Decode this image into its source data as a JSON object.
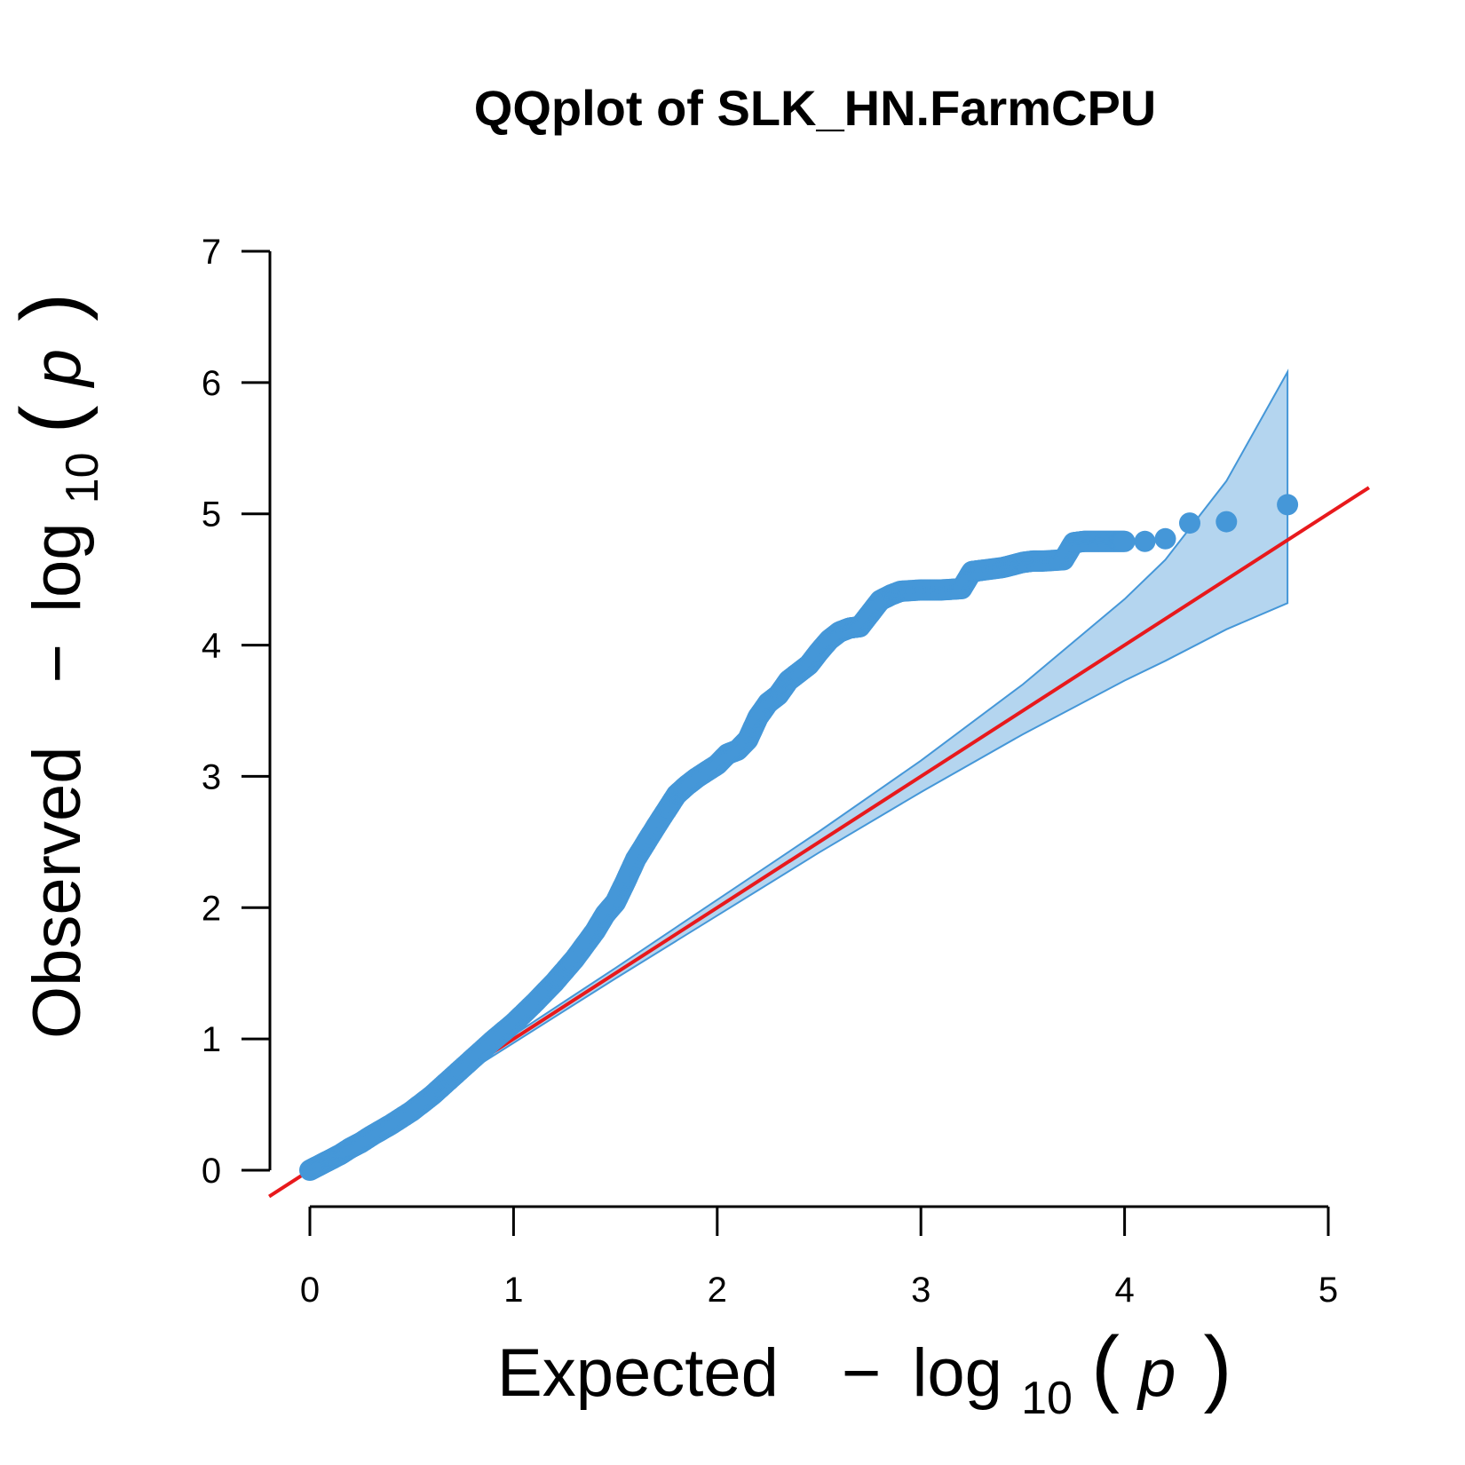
{
  "chart_data": {
    "type": "scatter",
    "title": "QQplot of SLK_HN.FarmCPU",
    "xlabel": {
      "text": "Expected",
      "minus": "−",
      "log": "log",
      "base": "10",
      "open": "(",
      "var": "p",
      "close": ")"
    },
    "ylabel": {
      "text": "Observed",
      "minus": "−",
      "log": "log",
      "base": "10",
      "open": "(",
      "var": "p",
      "close": ")"
    },
    "xlim": [
      0,
      5
    ],
    "ylim": [
      0,
      7
    ],
    "x_ticks": [
      0,
      1,
      2,
      3,
      4,
      5
    ],
    "y_ticks": [
      0,
      1,
      2,
      3,
      4,
      5,
      6,
      7
    ],
    "colors": {
      "points": "#4597d8",
      "reference_line": "#e8191c",
      "band_fill": "#b4d5ef",
      "band_stroke": "#4597d8"
    },
    "reference_line": {
      "name": "y = x",
      "x": [
        -0.2,
        5.2
      ],
      "y": [
        -0.2,
        5.2
      ]
    },
    "confidence_band": {
      "x": [
        0,
        0.5,
        1,
        1.5,
        2,
        2.5,
        3,
        3.5,
        4,
        4.2,
        4.5,
        4.8
      ],
      "upper": [
        0,
        0.52,
        1.03,
        1.54,
        2.06,
        2.58,
        3.12,
        3.7,
        4.35,
        4.65,
        5.25,
        6.08
      ],
      "lower": [
        0,
        0.48,
        0.97,
        1.46,
        1.94,
        2.42,
        2.88,
        3.32,
        3.73,
        3.88,
        4.12,
        4.32
      ]
    },
    "series": [
      {
        "x": [
          0,
          0.05,
          0.1,
          0.15,
          0.2,
          0.25,
          0.3,
          0.4,
          0.5,
          0.6,
          0.7,
          0.8,
          0.9,
          1.0,
          1.1,
          1.2,
          1.3,
          1.4,
          1.45,
          1.5,
          1.55,
          1.6,
          1.7,
          1.8,
          1.85,
          1.9,
          2.0,
          2.05,
          2.1,
          2.15,
          2.2,
          2.25,
          2.3,
          2.35,
          2.4,
          2.45,
          2.5,
          2.55,
          2.6,
          2.65,
          2.7,
          2.75,
          2.8,
          2.85,
          2.9,
          3.0,
          3.1,
          3.2,
          3.25,
          3.3,
          3.4,
          3.5,
          3.55,
          3.6,
          3.7,
          3.75,
          3.8,
          3.85,
          3.9,
          3.95,
          4.0,
          4.1,
          4.2,
          4.32,
          4.5,
          4.8
        ],
        "y": [
          0,
          0.04,
          0.08,
          0.12,
          0.17,
          0.21,
          0.26,
          0.35,
          0.45,
          0.57,
          0.71,
          0.85,
          0.99,
          1.12,
          1.27,
          1.43,
          1.61,
          1.82,
          1.95,
          2.04,
          2.2,
          2.37,
          2.62,
          2.86,
          2.93,
          2.99,
          3.09,
          3.17,
          3.2,
          3.28,
          3.45,
          3.56,
          3.62,
          3.73,
          3.79,
          3.85,
          3.95,
          4.04,
          4.1,
          4.13,
          4.14,
          4.24,
          4.34,
          4.38,
          4.41,
          4.42,
          4.42,
          4.43,
          4.56,
          4.57,
          4.59,
          4.63,
          4.64,
          4.64,
          4.65,
          4.78,
          4.79,
          4.79,
          4.79,
          4.79,
          4.79,
          4.79,
          4.81,
          4.93,
          4.94,
          5.07
        ]
      }
    ]
  }
}
